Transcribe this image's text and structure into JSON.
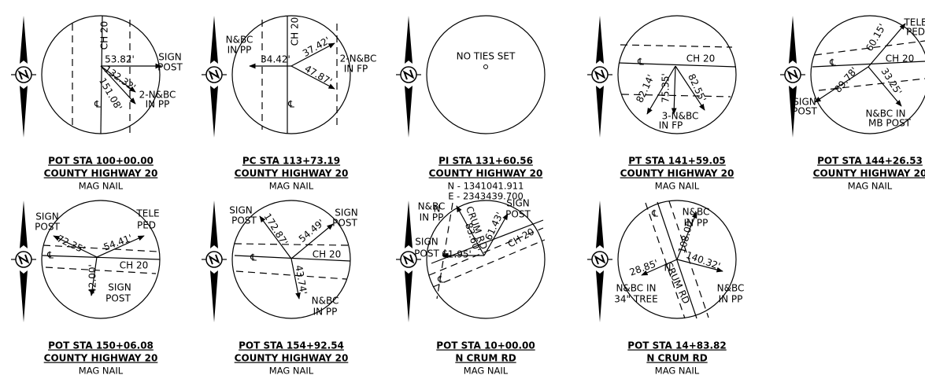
{
  "panels": [
    {
      "labels": [
        "CH 20",
        "53.82'",
        "SIGN",
        "POST",
        "132.32'",
        "2-N&BC",
        "IN PP",
        "151.08'",
        "℄"
      ],
      "station": "POT STA 100+00.00",
      "road": "COUNTY HIGHWAY 20",
      "monument": [
        "MAG NAIL"
      ]
    },
    {
      "labels": [
        "N&BC",
        "IN PP",
        "CH 20",
        "34.42'",
        "37.42'",
        "2-N&BC",
        "IN FP",
        "47.87'",
        "℄"
      ],
      "station": "PC STA 113+73.19",
      "road": "COUNTY HIGHWAY 20",
      "monument": [
        "MAG NAIL"
      ]
    },
    {
      "labels": [
        "NO TIES SET"
      ],
      "station": "PI STA 131+60.56",
      "road": "COUNTY HIGHWAY 20",
      "monument": [
        "N - 1341041.911",
        "E - 2343439.700"
      ]
    },
    {
      "labels": [
        "℄",
        "CH 20",
        "82.14'",
        "75.35'",
        "82.55'",
        "3-N&BC",
        "IN FP"
      ],
      "station": "PT STA 141+59.05",
      "road": "COUNTY HIGHWAY 20",
      "monument": [
        "MAG NAIL"
      ]
    },
    {
      "labels": [
        "TELE",
        "PED",
        "60.15'",
        "CH 20",
        "℄",
        "89.78'",
        "33.25'",
        "SIGN",
        "POST",
        "N&BC IN",
        "MB POST"
      ],
      "station": "POT STA 144+26.53",
      "road": "COUNTY HIGHWAY 20",
      "monument": [
        "MAG NAIL"
      ]
    },
    {
      "labels": [
        "SIGN",
        "POST",
        "72.35'",
        "54.41'",
        "TELE",
        "PED",
        "℄",
        "CH 20",
        "42.00'",
        "SIGN",
        "POST"
      ],
      "station": "POT STA 150+06.08",
      "road": "COUNTY HIGHWAY 20",
      "monument": [
        "MAG NAIL"
      ]
    },
    {
      "labels": [
        "SIGN",
        "POST",
        "172.87'",
        "54.49'",
        "SIGN",
        "POST",
        "℄",
        "CH 20",
        "43.74'",
        "N&BC",
        "IN PP"
      ],
      "station": "POT STA 154+92.54",
      "road": "COUNTY HIGHWAY 20",
      "monument": [
        "MAG NAIL"
      ]
    },
    {
      "labels": [
        "N",
        "N&BC",
        "IN PP",
        "CRUM RD",
        "83.60'",
        "61.43'",
        "SIGN",
        "POST",
        "CH 20",
        "SIGN",
        "POST",
        "61.95'",
        "℄"
      ],
      "station": "POT STA 10+00.00",
      "road": "N CRUM RD",
      "monument": [
        "MAG NAIL"
      ]
    },
    {
      "labels": [
        "N&BC",
        "IN PP",
        "108.00'",
        "140.32'",
        "28.85'",
        "N",
        "CRUM RD",
        "N&BC IN",
        "34\" TREE",
        "N&BC",
        "IN PP",
        "℄"
      ],
      "station": "POT STA 14+83.82",
      "road": "N CRUM RD",
      "monument": [
        "MAG NAIL"
      ]
    }
  ]
}
